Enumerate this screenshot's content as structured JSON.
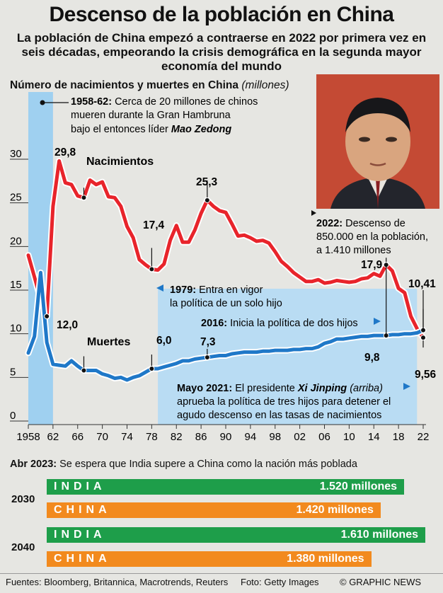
{
  "title": "Descenso de la población en China",
  "subtitle": "La población de China empezó a contraerse en 2022 por primera vez en seis décadas, empeorando la crisis demográfica en la segunda mayor economía del mundo",
  "chart_heading": "Número de nacimientos y muertes en China",
  "chart_unit": "(millones)",
  "colors": {
    "births": "#e8242b",
    "deaths": "#1f78c8",
    "highlight_blue": "#b9dcf3",
    "famine_band": "#9fd0f0",
    "india": "#1e9e4a",
    "china": "#f28a1e"
  },
  "chart_data": {
    "type": "line",
    "title": "Número de nacimientos y muertes en China (millones)",
    "xlabel": "",
    "ylabel": "",
    "xlim": [
      1958,
      2022
    ],
    "ylim": [
      0,
      30
    ],
    "y_ticks": [
      0,
      5,
      10,
      15,
      20,
      25,
      30
    ],
    "x_tick_labels": [
      "1958",
      "62",
      "66",
      "70",
      "74",
      "78",
      "82",
      "86",
      "90",
      "94",
      "98",
      "02",
      "06",
      "10",
      "14",
      "18",
      "22"
    ],
    "x_ticks": [
      1958,
      1962,
      1966,
      1970,
      1974,
      1978,
      1982,
      1986,
      1990,
      1994,
      1998,
      2002,
      2006,
      2010,
      2014,
      2018,
      2022
    ],
    "shaded_ranges": [
      [
        1958,
        1962
      ],
      [
        1979,
        2021
      ]
    ],
    "series": [
      {
        "name": "Nacimientos",
        "color": "#e8242b",
        "x": [
          1958,
          1959,
          1960,
          1961,
          1962,
          1963,
          1964,
          1965,
          1966,
          1967,
          1968,
          1969,
          1970,
          1971,
          1972,
          1973,
          1974,
          1975,
          1976,
          1977,
          1978,
          1979,
          1980,
          1981,
          1982,
          1983,
          1984,
          1985,
          1986,
          1987,
          1988,
          1989,
          1990,
          1991,
          1992,
          1993,
          1994,
          1995,
          1996,
          1997,
          1998,
          1999,
          2000,
          2001,
          2002,
          2003,
          2004,
          2005,
          2006,
          2007,
          2008,
          2009,
          2010,
          2011,
          2012,
          2013,
          2014,
          2015,
          2016,
          2017,
          2018,
          2019,
          2020,
          2021,
          2022
        ],
        "values": [
          19.0,
          16.5,
          13.9,
          12.0,
          24.6,
          29.8,
          27.3,
          27.1,
          25.8,
          25.6,
          27.6,
          27.1,
          27.4,
          25.7,
          25.6,
          24.6,
          22.3,
          21.0,
          18.5,
          17.9,
          17.4,
          17.3,
          18.0,
          20.7,
          22.4,
          20.5,
          20.5,
          21.9,
          23.8,
          25.3,
          24.6,
          24.1,
          23.9,
          22.6,
          21.2,
          21.3,
          21.0,
          20.6,
          20.7,
          20.4,
          19.4,
          18.3,
          17.7,
          17.0,
          16.5,
          16.0,
          16.0,
          16.2,
          15.8,
          15.9,
          16.1,
          16.0,
          15.9,
          16.0,
          16.3,
          16.4,
          16.9,
          16.6,
          17.9,
          17.2,
          15.2,
          14.7,
          12.0,
          10.6,
          9.56
        ]
      },
      {
        "name": "Muertes",
        "color": "#1f78c8",
        "x": [
          1958,
          1959,
          1960,
          1961,
          1962,
          1963,
          1964,
          1965,
          1966,
          1967,
          1968,
          1969,
          1970,
          1971,
          1972,
          1973,
          1974,
          1975,
          1976,
          1977,
          1978,
          1979,
          1980,
          1981,
          1982,
          1983,
          1984,
          1985,
          1986,
          1987,
          1988,
          1989,
          1990,
          1991,
          1992,
          1993,
          1994,
          1995,
          1996,
          1997,
          1998,
          1999,
          2000,
          2001,
          2002,
          2003,
          2004,
          2005,
          2006,
          2007,
          2008,
          2009,
          2010,
          2011,
          2012,
          2013,
          2014,
          2015,
          2016,
          2017,
          2018,
          2019,
          2020,
          2021,
          2022
        ],
        "values": [
          7.8,
          9.7,
          17.0,
          9.0,
          6.5,
          6.4,
          6.3,
          6.9,
          6.3,
          5.8,
          5.8,
          5.8,
          5.4,
          5.2,
          4.9,
          5.0,
          4.7,
          5.0,
          5.2,
          5.6,
          6.0,
          6.0,
          6.2,
          6.4,
          6.6,
          6.9,
          6.9,
          7.1,
          7.2,
          7.3,
          7.4,
          7.5,
          7.5,
          7.7,
          7.8,
          7.9,
          7.9,
          7.9,
          8.0,
          8.0,
          8.1,
          8.1,
          8.1,
          8.2,
          8.2,
          8.3,
          8.3,
          8.5,
          8.9,
          9.1,
          9.4,
          9.4,
          9.5,
          9.6,
          9.7,
          9.7,
          9.8,
          9.8,
          9.8,
          9.9,
          9.9,
          10.0,
          10.0,
          10.1,
          10.41
        ]
      }
    ]
  },
  "labels": {
    "births_name": "Nacimientos",
    "deaths_name": "Muertes",
    "peak_1963": "29,8",
    "low_1961": "12,0",
    "val_1978_births": "17,4",
    "val_1987_births": "25,3",
    "val_2016_births": "17,9",
    "val_2022_births": "9,56",
    "val_1978_deaths": "6,0",
    "val_1987_deaths": "7,3",
    "val_2016_deaths": "9,8",
    "val_2022_deaths": "10,41"
  },
  "notes": {
    "famine_bold": "1958-62:",
    "famine_line1": " Cerca de 20 millones de chinos",
    "famine_line2": "mueren durante la Gran Hambruna",
    "famine_line3": "bajo el entonces líder ",
    "famine_leader": "Mao Zedong",
    "onechild_bold": "1979:",
    "onechild_line1": " Entra en vigor",
    "onechild_line2": "la política de un solo hijo",
    "twochild_bold": "2016:",
    "twochild_text": " Inicia la política de dos hijos",
    "may2021_bold": "Mayo 2021:",
    "may2021_line1a": " El presidente ",
    "may2021_leader": "Xi Jinping",
    "may2021_line1b": " (arriba)",
    "may2021_line2": "aprueba la política de tres hijos para detener el",
    "may2021_line3": "agudo descenso en las tasas de nacimientos",
    "pop2022_bold": "2022:",
    "pop2022_line1": " Descenso de",
    "pop2022_line2": "850.000 en la población,",
    "pop2022_line3": "a 1.410 millones"
  },
  "forecast": {
    "heading_bold": "Abr 2023:",
    "heading_text": " Se espera que India supere a China como la nación más poblada",
    "groups": [
      {
        "year": "2030",
        "rows": [
          {
            "country": "INDIA",
            "label": "1.520 millones",
            "value": 1520,
            "color": "#1e9e4a"
          },
          {
            "country": "CHINA",
            "label": "1.420 millones",
            "value": 1420,
            "color": "#f28a1e"
          }
        ]
      },
      {
        "year": "2040",
        "rows": [
          {
            "country": "INDIA",
            "label": "1.610 millones",
            "value": 1610,
            "color": "#1e9e4a"
          },
          {
            "country": "CHINA",
            "label": "1.380 millones",
            "value": 1380,
            "color": "#f28a1e"
          }
        ]
      }
    ]
  },
  "footer": {
    "sources": "Fuentes: Bloomberg, Britannica, Macrotrends, Reuters",
    "photo": "Foto: Getty Images",
    "brand": "© GRAPHIC NEWS"
  }
}
